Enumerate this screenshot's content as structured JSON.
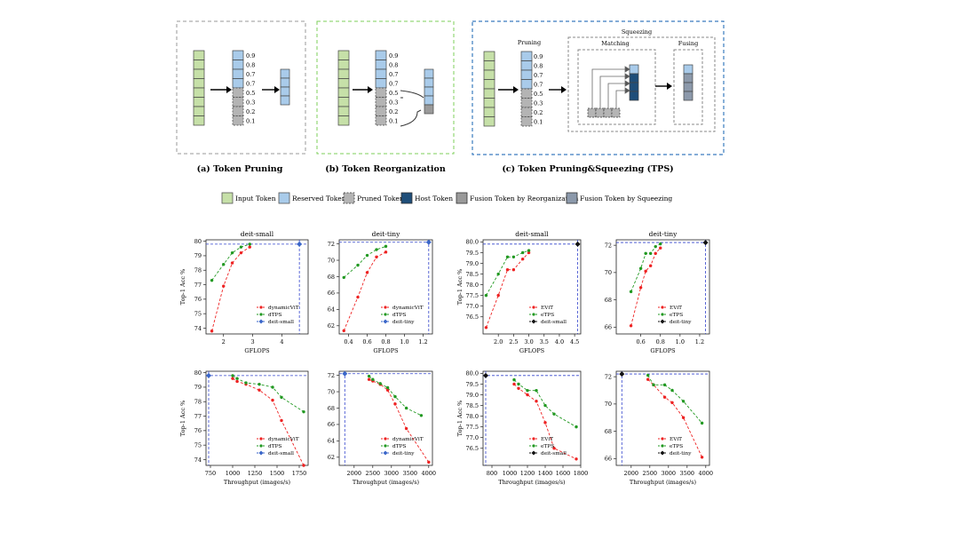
{
  "diagram": {
    "panels": [
      {
        "caption": "(a) Token Pruning"
      },
      {
        "caption": "(b) Token Reorganization"
      },
      {
        "caption": "(c) Token Pruning&Squeezing (TPS)"
      }
    ],
    "scores": [
      "0.9",
      "0.8",
      "0.7",
      "0.7",
      "0.5",
      "0.3",
      "0.2",
      "0.1"
    ],
    "tps_labels": {
      "pruning": "Pruning",
      "squeezing": "Squeezing",
      "matching": "Matching",
      "fusing": "Fusing"
    },
    "colors": {
      "input": "#c6e0a8",
      "reserved": "#a9cbea",
      "pruned": "#b4b4b4",
      "host": "#1f4e79",
      "fusion_reorg": "#9a9a9a",
      "fusion_squeeze": "#8c99ab",
      "border_a": "#9a9a9a",
      "border_b": "#7ccf5a",
      "border_c": "#3a7bbf"
    }
  },
  "legend": {
    "items": [
      "Input Token",
      "Reserved Token",
      "Pruned Token",
      "Host Token",
      "Fusion Token by Reorganization",
      "Fusion Token by Squeezing"
    ]
  },
  "chart_data": [
    {
      "type": "line",
      "title": "deit-small",
      "xlabel": "GFLOPS",
      "ylabel": "Top-1 Acc %",
      "xlim": [
        1.4,
        4.9
      ],
      "ylim": [
        73.6,
        80.1
      ],
      "xticks": [
        "2",
        "3",
        "4"
      ],
      "xtick_values": [
        2,
        3,
        4
      ],
      "yticks": [
        "74",
        "75",
        "76",
        "77",
        "78",
        "79",
        "80"
      ],
      "ytick_values": [
        74,
        75,
        76,
        77,
        78,
        79,
        80
      ],
      "series": [
        {
          "name": "dynamicViT",
          "color": "#ee2222",
          "x": [
            1.6,
            2.0,
            2.3,
            2.6,
            2.9
          ],
          "y": [
            73.8,
            76.9,
            78.5,
            79.2,
            79.6
          ]
        },
        {
          "name": "dTPS",
          "color": "#229922",
          "x": [
            1.6,
            2.0,
            2.3,
            2.6,
            2.9
          ],
          "y": [
            77.3,
            78.4,
            79.2,
            79.6,
            79.8
          ]
        },
        {
          "name": "deit-small",
          "color": "#3a66c9",
          "x": [
            4.6
          ],
          "y": [
            79.8
          ]
        }
      ]
    },
    {
      "type": "line",
      "title": "deit-tiny",
      "xlabel": "GFLOPS",
      "ylabel": "",
      "xlim": [
        0.3,
        1.3
      ],
      "ylim": [
        61,
        72.5
      ],
      "xticks": [
        "0.4",
        "0.6",
        "0.8",
        "1.0",
        "1.2"
      ],
      "xtick_values": [
        0.4,
        0.6,
        0.8,
        1.0,
        1.2
      ],
      "yticks": [
        "62",
        "64",
        "66",
        "68",
        "70",
        "72"
      ],
      "ytick_values": [
        62,
        64,
        66,
        68,
        70,
        72
      ],
      "series": [
        {
          "name": "dynamicViT",
          "color": "#ee2222",
          "x": [
            0.35,
            0.5,
            0.6,
            0.7,
            0.8
          ],
          "y": [
            61.4,
            65.5,
            68.5,
            70.4,
            71.0
          ]
        },
        {
          "name": "dTPS",
          "color": "#229922",
          "x": [
            0.35,
            0.5,
            0.6,
            0.7,
            0.8
          ],
          "y": [
            67.9,
            69.4,
            70.6,
            71.3,
            71.7
          ]
        },
        {
          "name": "deit-tiny",
          "color": "#3a66c9",
          "x": [
            1.26
          ],
          "y": [
            72.2
          ]
        }
      ]
    },
    {
      "type": "line",
      "title": "deit-small",
      "xlabel": "GFLOPS",
      "ylabel": "Top-1 Acc %",
      "xlim": [
        1.5,
        4.7
      ],
      "ylim": [
        75.7,
        80.1
      ],
      "xticks": [
        "2.0",
        "2.5",
        "3.0",
        "3.5",
        "4.0",
        "4.5"
      ],
      "xtick_values": [
        2.0,
        2.5,
        3.0,
        3.5,
        4.0,
        4.5
      ],
      "yticks": [
        "76.5",
        "77.0",
        "77.5",
        "78.0",
        "78.5",
        "79.0",
        "79.5",
        "80.0"
      ],
      "ytick_values": [
        76.5,
        77.0,
        77.5,
        78.0,
        78.5,
        79.0,
        79.5,
        80.0
      ],
      "series": [
        {
          "name": "EViT",
          "color": "#ee2222",
          "x": [
            1.6,
            2.0,
            2.3,
            2.5,
            2.8,
            3.0
          ],
          "y": [
            76.0,
            77.5,
            78.7,
            78.7,
            79.2,
            79.5
          ]
        },
        {
          "name": "eTPS",
          "color": "#229922",
          "x": [
            1.6,
            2.0,
            2.3,
            2.5,
            2.8,
            3.0
          ],
          "y": [
            77.5,
            78.5,
            79.3,
            79.3,
            79.5,
            79.6
          ]
        },
        {
          "name": "deit-small",
          "color": "#111111",
          "x": [
            4.6
          ],
          "y": [
            79.9
          ]
        }
      ]
    },
    {
      "type": "line",
      "title": "deit-tiny",
      "xlabel": "GFLOPS",
      "ylabel": "",
      "xlim": [
        0.35,
        1.3
      ],
      "ylim": [
        65.5,
        72.4
      ],
      "xticks": [
        "0.6",
        "0.8",
        "1.0",
        "1.2"
      ],
      "xtick_values": [
        0.6,
        0.8,
        1.0,
        1.2
      ],
      "yticks": [
        "66",
        "68",
        "70",
        "72"
      ],
      "ytick_values": [
        66,
        68,
        70,
        72
      ],
      "series": [
        {
          "name": "EViT",
          "color": "#ee2222",
          "x": [
            0.5,
            0.6,
            0.65,
            0.7,
            0.75,
            0.8
          ],
          "y": [
            66.1,
            68.9,
            70.1,
            70.5,
            71.4,
            71.8
          ]
        },
        {
          "name": "eTPS",
          "color": "#229922",
          "x": [
            0.5,
            0.6,
            0.65,
            0.7,
            0.75,
            0.8
          ],
          "y": [
            68.6,
            70.3,
            71.4,
            71.4,
            71.9,
            72.1
          ]
        },
        {
          "name": "deit-tiny",
          "color": "#111111",
          "x": [
            1.26
          ],
          "y": [
            72.2
          ]
        }
      ]
    },
    {
      "type": "line",
      "title": "",
      "xlabel": "Throughput (images/s)",
      "ylabel": "Top-1 Acc %",
      "xlim": [
        700,
        1850
      ],
      "ylim": [
        73.6,
        80.1
      ],
      "xticks": [
        "750",
        "1000",
        "1250",
        "1500",
        "1750"
      ],
      "xtick_values": [
        750,
        1000,
        1250,
        1500,
        1750
      ],
      "yticks": [
        "74",
        "75",
        "76",
        "77",
        "78",
        "79",
        "80"
      ],
      "ytick_values": [
        74,
        75,
        76,
        77,
        78,
        79,
        80
      ],
      "series": [
        {
          "name": "dynamicViT",
          "color": "#ee2222",
          "x": [
            1000,
            1050,
            1150,
            1300,
            1450,
            1550,
            1800
          ],
          "y": [
            79.6,
            79.4,
            79.2,
            78.8,
            78.1,
            76.7,
            73.6
          ]
        },
        {
          "name": "dTPS",
          "color": "#229922",
          "x": [
            1000,
            1050,
            1150,
            1300,
            1450,
            1550,
            1800
          ],
          "y": [
            79.8,
            79.6,
            79.3,
            79.2,
            79.0,
            78.3,
            77.3
          ]
        },
        {
          "name": "deit-small",
          "color": "#3a66c9",
          "x": [
            730
          ],
          "y": [
            79.8
          ]
        }
      ]
    },
    {
      "type": "line",
      "title": "",
      "xlabel": "Throughput (images/s)",
      "ylabel": "",
      "xlim": [
        1600,
        4100
      ],
      "ylim": [
        61,
        72.5
      ],
      "xticks": [
        "2000",
        "2500",
        "3000",
        "3500",
        "4000"
      ],
      "xtick_values": [
        2000,
        2500,
        3000,
        3500,
        4000
      ],
      "yticks": [
        "62",
        "64",
        "66",
        "68",
        "70",
        "72"
      ],
      "ytick_values": [
        62,
        64,
        66,
        68,
        70,
        72
      ],
      "series": [
        {
          "name": "dynamicViT",
          "color": "#ee2222",
          "x": [
            2400,
            2500,
            2700,
            2900,
            3100,
            3400,
            4000
          ],
          "y": [
            71.5,
            71.3,
            70.9,
            70.2,
            68.5,
            65.5,
            61.4
          ]
        },
        {
          "name": "dTPS",
          "color": "#229922",
          "x": [
            2400,
            2500,
            2700,
            2900,
            3100,
            3400,
            3800
          ],
          "y": [
            71.9,
            71.5,
            71.0,
            70.5,
            69.4,
            68.0,
            67.1
          ]
        },
        {
          "name": "deit-tiny",
          "color": "#3a66c9",
          "x": [
            1750
          ],
          "y": [
            72.2
          ]
        }
      ]
    },
    {
      "type": "line",
      "title": "",
      "xlabel": "Throughput (images/s)",
      "ylabel": "Top-1 Acc %",
      "xlim": [
        700,
        1800
      ],
      "ylim": [
        75.7,
        80.1
      ],
      "xticks": [
        "800",
        "1000",
        "1200",
        "1400",
        "1600",
        "1800"
      ],
      "xtick_values": [
        800,
        1000,
        1200,
        1400,
        1600,
        1800
      ],
      "yticks": [
        "76.5",
        "77.0",
        "77.5",
        "78.0",
        "78.5",
        "79.0",
        "79.5",
        "80.0"
      ],
      "ytick_values": [
        76.5,
        77.0,
        77.5,
        78.0,
        78.5,
        79.0,
        79.5,
        80.0
      ],
      "series": [
        {
          "name": "EViT",
          "color": "#ee2222",
          "x": [
            1050,
            1100,
            1200,
            1300,
            1400,
            1500,
            1750
          ],
          "y": [
            79.5,
            79.3,
            79.0,
            78.7,
            77.7,
            76.5,
            76.0
          ]
        },
        {
          "name": "eTPS",
          "color": "#229922",
          "x": [
            1050,
            1100,
            1200,
            1300,
            1400,
            1500,
            1750
          ],
          "y": [
            79.7,
            79.5,
            79.2,
            79.2,
            78.5,
            78.1,
            77.5
          ]
        },
        {
          "name": "deit-small",
          "color": "#111111",
          "x": [
            730
          ],
          "y": [
            79.9
          ]
        }
      ]
    },
    {
      "type": "line",
      "title": "",
      "xlabel": "Throughput (images/s)",
      "ylabel": "",
      "xlim": [
        1600,
        4100
      ],
      "ylim": [
        65.5,
        72.4
      ],
      "xticks": [
        "2000",
        "2500",
        "3000",
        "3500",
        "4000"
      ],
      "xtick_values": [
        2000,
        2500,
        3000,
        3500,
        4000
      ],
      "yticks": [
        "66",
        "68",
        "70",
        "72"
      ],
      "ytick_values": [
        66,
        68,
        70,
        72
      ],
      "series": [
        {
          "name": "EViT",
          "color": "#ee2222",
          "x": [
            2450,
            2600,
            2900,
            3100,
            3400,
            3900
          ],
          "y": [
            71.8,
            71.4,
            70.5,
            70.1,
            69.0,
            66.1
          ]
        },
        {
          "name": "eTPS",
          "color": "#229922",
          "x": [
            2450,
            2600,
            2900,
            3100,
            3400,
            3900
          ],
          "y": [
            72.1,
            71.4,
            71.4,
            71.0,
            70.2,
            68.6
          ]
        },
        {
          "name": "deit-tiny",
          "color": "#111111",
          "x": [
            1750
          ],
          "y": [
            72.2
          ]
        }
      ]
    }
  ]
}
